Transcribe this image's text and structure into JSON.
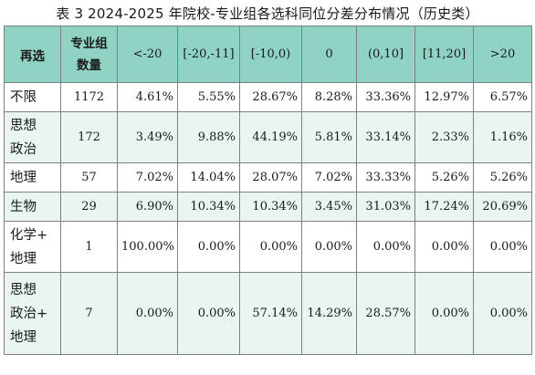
{
  "caption": "表 3 2024-2025 年院校-专业组各选科同位分差分布情况（历史类）",
  "table": {
    "headers": {
      "col0": "再选",
      "col1_line1": "专业组",
      "col1_line2": "数量",
      "bins": [
        "<-20",
        "[-20,-11]",
        "[-10,0)",
        "0",
        "(0,10]",
        "[11,20]",
        ">20"
      ]
    },
    "rows": [
      {
        "label_lines": [
          "不限"
        ],
        "count": "1172",
        "values": [
          "4.61%",
          "5.55%",
          "28.67%",
          "8.28%",
          "33.36%",
          "12.97%",
          "6.57%"
        ]
      },
      {
        "label_lines": [
          "思想",
          "政治"
        ],
        "count": "172",
        "values": [
          "3.49%",
          "9.88%",
          "44.19%",
          "5.81%",
          "33.14%",
          "2.33%",
          "1.16%"
        ]
      },
      {
        "label_lines": [
          "地理"
        ],
        "count": "57",
        "values": [
          "7.02%",
          "14.04%",
          "28.07%",
          "7.02%",
          "33.33%",
          "5.26%",
          "5.26%"
        ]
      },
      {
        "label_lines": [
          "生物"
        ],
        "count": "29",
        "values": [
          "6.90%",
          "10.34%",
          "10.34%",
          "3.45%",
          "31.03%",
          "17.24%",
          "20.69%"
        ]
      },
      {
        "label_lines": [
          "化学+",
          "地理"
        ],
        "count": "1",
        "values": [
          "100.00%",
          "0.00%",
          "0.00%",
          "0.00%",
          "0.00%",
          "0.00%",
          "0.00%"
        ]
      },
      {
        "label_lines": [
          "思想",
          "政治+",
          "地理"
        ],
        "count": "7",
        "values": [
          "0.00%",
          "0.00%",
          "57.14%",
          "14.29%",
          "28.57%",
          "0.00%",
          "0.00%"
        ]
      }
    ]
  },
  "colors": {
    "header_bg": "#8fd3c4",
    "alt_row_bg": "#e9f5ee",
    "border": "#7f7f7f"
  }
}
